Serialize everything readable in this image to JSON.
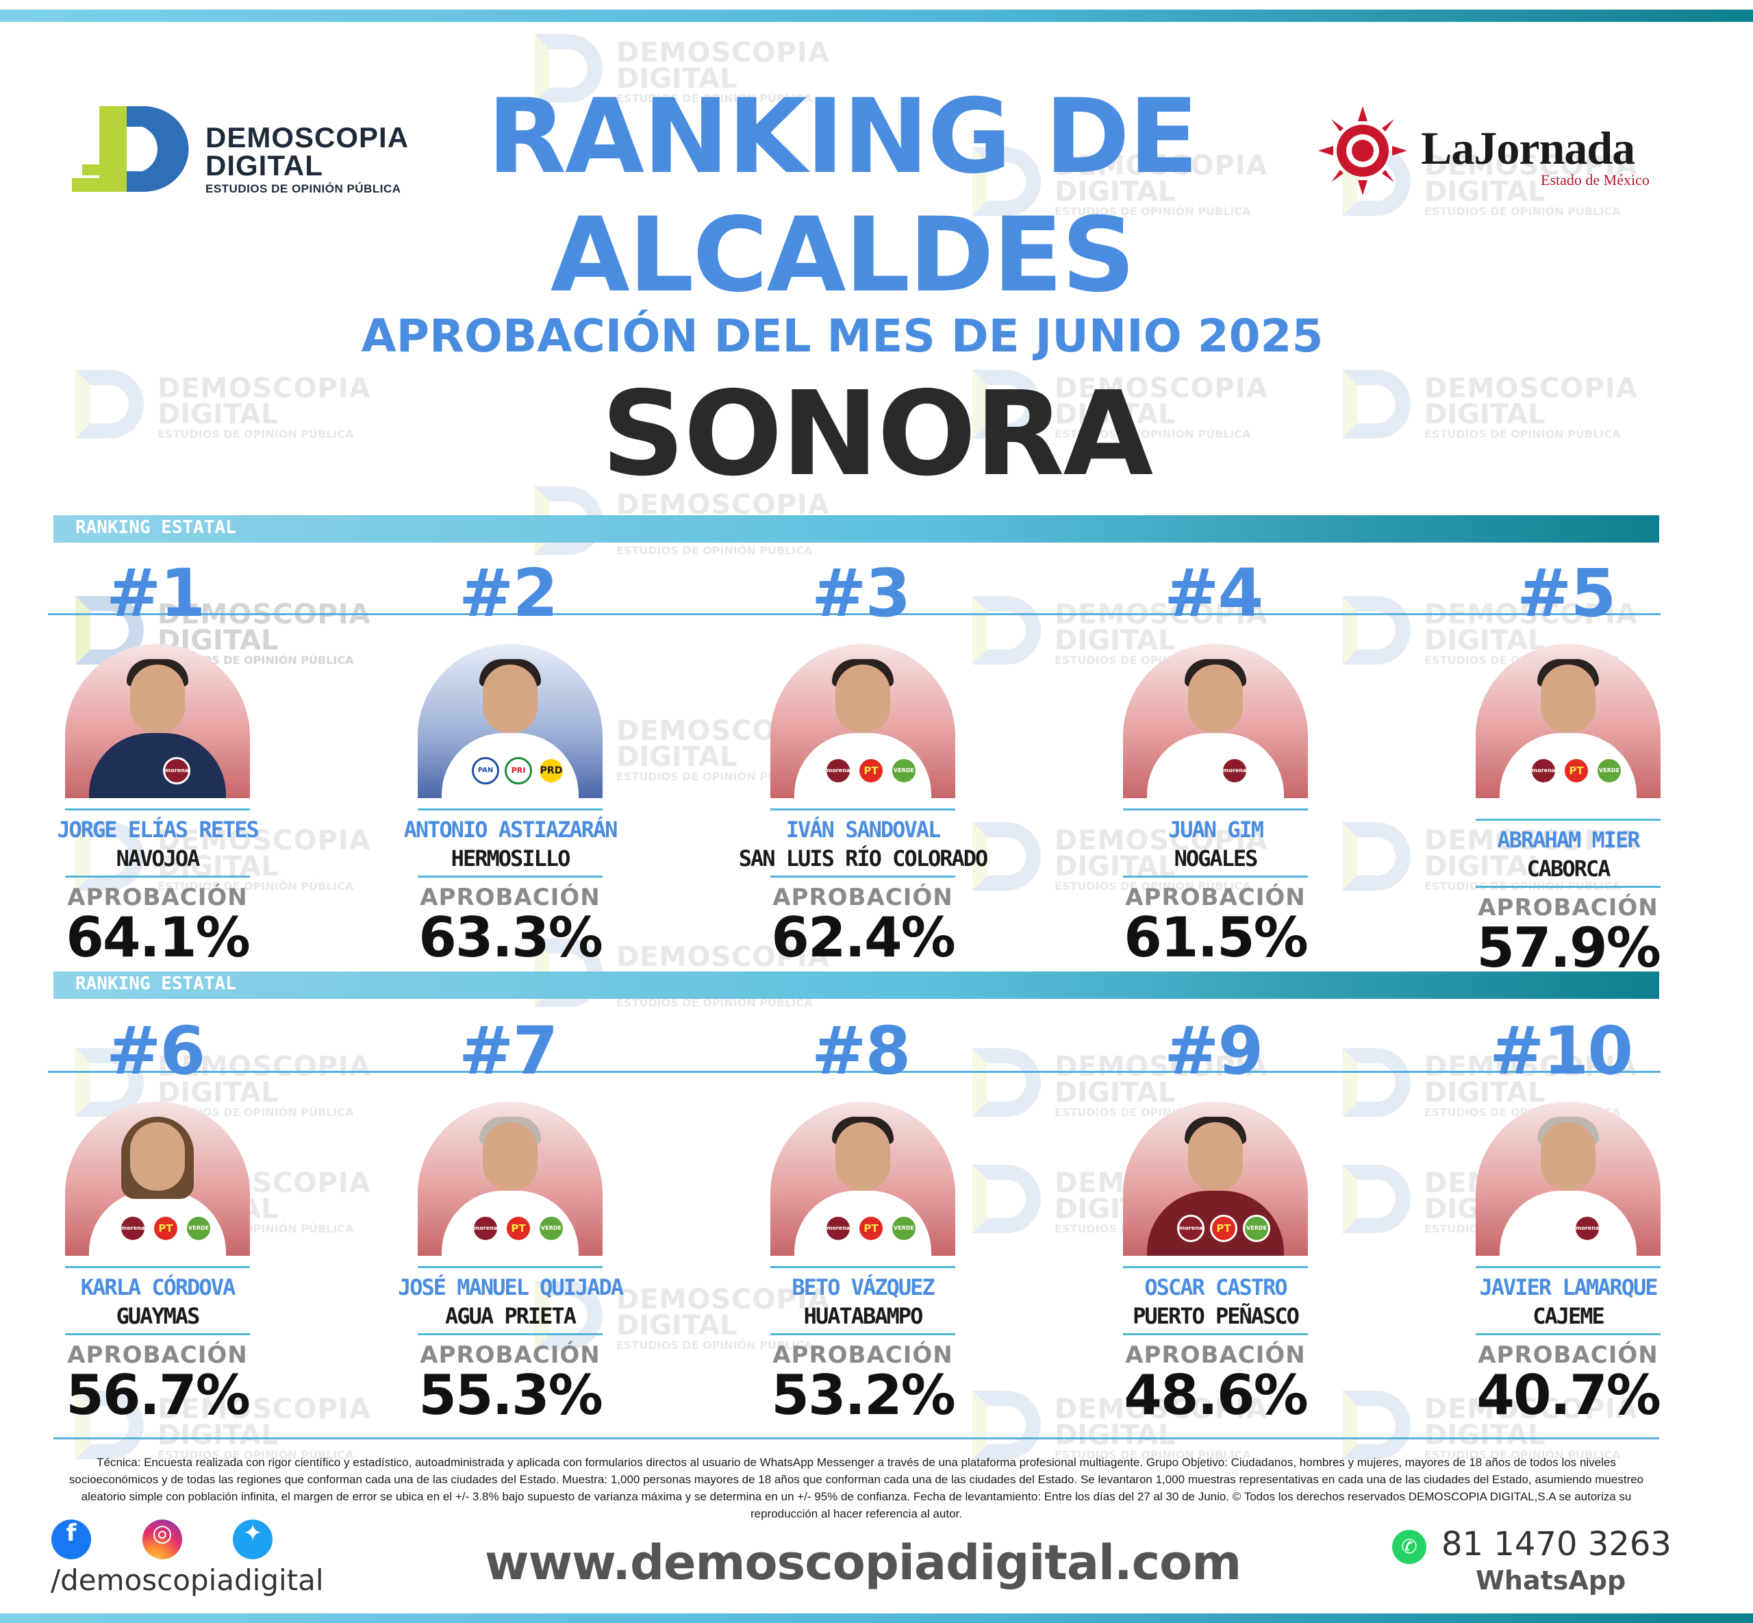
{
  "logo_left": {
    "line1": "DEMOSCOPIA",
    "line2": "DIGITAL",
    "tagline": "ESTUDIOS DE OPINIÓN PÚBLICA"
  },
  "logo_right": {
    "name": "LaJornada",
    "sub": "Estado de México"
  },
  "watermark": {
    "line1": "DEMOSCOPIA",
    "line2": "DIGITAL",
    "line3": "ESTUDIOS DE OPINIÓN PÚBLICA"
  },
  "title": {
    "line1": "RANKING DE",
    "line2": "ALCALDES",
    "subtitle": "APROBACIÓN DEL MES DE JUNIO 2025",
    "state": "SONORA"
  },
  "section_label": "RANKING ESTATAL",
  "approval_label": "APROBACIÓN",
  "mayors": [
    {
      "rank": "#1",
      "name": "JORGE ELÍAS RETES",
      "city": "NAVOJOA",
      "approval": "64.1%",
      "parties": [
        "morena"
      ]
    },
    {
      "rank": "#2",
      "name": "ANTONIO ASTIAZARÁN",
      "city": "HERMOSILLO",
      "approval": "63.3%",
      "parties": [
        "PAN",
        "PRI",
        "PRD"
      ]
    },
    {
      "rank": "#3",
      "name": "IVÁN SANDOVAL",
      "city": "SAN LUIS RÍO COLORADO",
      "approval": "62.4%",
      "parties": [
        "morena",
        "PT",
        "VERDE"
      ]
    },
    {
      "rank": "#4",
      "name": "JUAN GIM",
      "city": "NOGALES",
      "approval": "61.5%",
      "parties": [
        "morena"
      ]
    },
    {
      "rank": "#5",
      "name": "ABRAHAM MIER",
      "city": "CABORCA",
      "approval": "57.9%",
      "parties": [
        "morena",
        "PT",
        "VERDE"
      ]
    },
    {
      "rank": "#6",
      "name": "KARLA CÓRDOVA",
      "city": "GUAYMAS",
      "approval": "56.7%",
      "parties": [
        "morena",
        "PT",
        "VERDE"
      ]
    },
    {
      "rank": "#7",
      "name": "JOSÉ MANUEL QUIJADA",
      "city": "AGUA PRIETA",
      "approval": "55.3%",
      "parties": [
        "morena",
        "PT",
        "VERDE"
      ]
    },
    {
      "rank": "#8",
      "name": "BETO VÁZQUEZ",
      "city": "HUATABAMPO",
      "approval": "53.2%",
      "parties": [
        "morena",
        "PT",
        "VERDE"
      ]
    },
    {
      "rank": "#9",
      "name": "OSCAR CASTRO",
      "city": "PUERTO PEÑASCO",
      "approval": "48.6%",
      "parties": [
        "morena",
        "PT",
        "VERDE"
      ]
    },
    {
      "rank": "#10",
      "name": "JAVIER LAMARQUE",
      "city": "CAJEME",
      "approval": "40.7%",
      "parties": [
        "morena"
      ]
    }
  ],
  "methodology": "Técnica: Encuesta realizada con rigor científico y estadístico, autoadministrada y aplicada con formularios directos al usuario de WhatsApp Messenger a través de una plataforma profesional multiagente. Grupo Objetivo: Ciudadanos, hombres y mujeres, mayores de 18 años de todos los niveles socioeconómicos y de todas las regiones que conforman cada una de las ciudades del Estado. Muestra: 1,000 personas mayores de 18 años que conforman cada una de las ciudades del Estado. Se levantaron 1,000 muestras representativas en cada una de las ciudades del Estado, asumiendo muestreo aleatorio simple con población infinita, el margen de error se ubica en el +/- 3.8% bajo supuesto de varianza máxima y se determina en un +/- 95% de confianza. Fecha de levantamiento: Entre los días del 27 al 30 de Junio. © Todos los derechos reservados DEMOSCOPIA DIGITAL,S.A se autoriza su reproducción al hacer referencia al autor.",
  "footer": {
    "handle": "/demoscopiadigital",
    "website": "www.demoscopiadigital.com",
    "phone": "81 1470 3263",
    "whatsapp_label": "WhatsApp"
  },
  "icons": {
    "facebook": "facebook-icon",
    "instagram": "instagram-icon",
    "twitter": "twitter-icon",
    "whatsapp": "whatsapp-icon"
  },
  "colors": {
    "accent_blue": "#4a8de0",
    "teal": "#0e7f8e",
    "dark": "#2a2a2a"
  }
}
